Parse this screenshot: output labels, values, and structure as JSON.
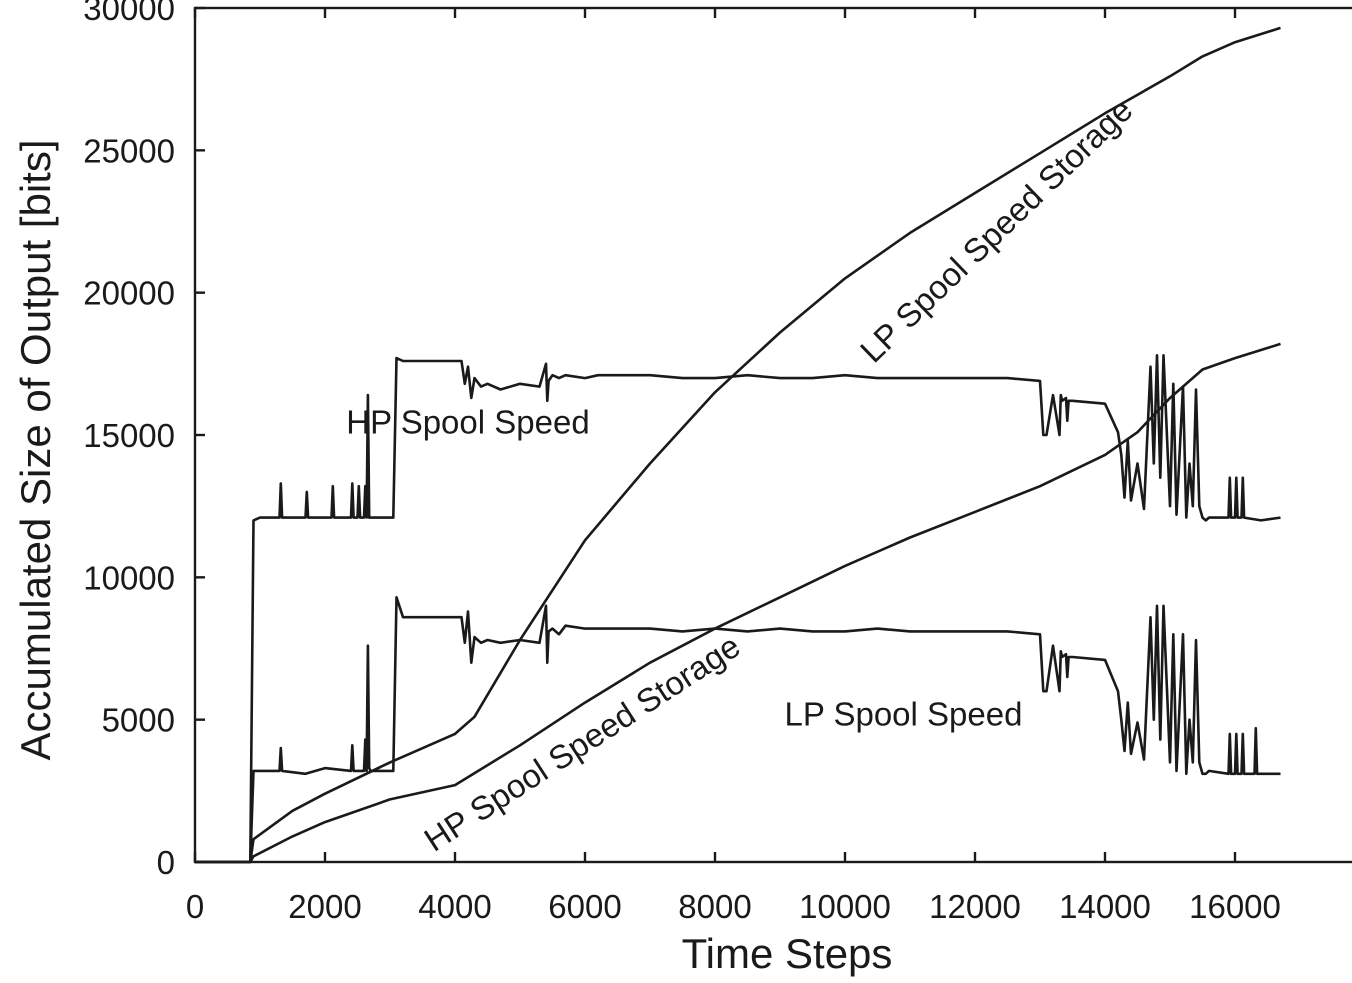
{
  "chart_data": {
    "type": "line",
    "title": "",
    "xlabel": "Time Steps",
    "ylabel": "Accumulated Size of Output [bits]",
    "xlim": [
      0,
      17800
    ],
    "ylim": [
      0,
      30000
    ],
    "xticks": [
      0,
      2000,
      4000,
      6000,
      8000,
      10000,
      12000,
      14000,
      16000
    ],
    "yticks": [
      0,
      5000,
      10000,
      15000,
      20000,
      25000,
      30000
    ],
    "xtick_labels": [
      "0",
      "2000",
      "4000",
      "6000",
      "8000",
      "10000",
      "12000",
      "14000",
      "16000"
    ],
    "ytick_labels": [
      "0",
      "5000",
      "10000",
      "15000",
      "20000",
      "25000",
      "30000"
    ],
    "grid": false,
    "legend": "none",
    "series": [
      {
        "name": "LP Spool Speed Storage",
        "x": [
          0,
          850,
          900,
          1500,
          2000,
          3000,
          4000,
          4300,
          5000,
          6000,
          7000,
          8000,
          9000,
          10000,
          11000,
          12000,
          13000,
          14000,
          15000,
          15500,
          16000,
          16700
        ],
        "y": [
          0,
          0,
          800,
          1800,
          2400,
          3500,
          4500,
          5100,
          7800,
          11300,
          14000,
          16500,
          18600,
          20500,
          22100,
          23500,
          24900,
          26300,
          27600,
          28300,
          28800,
          29300
        ]
      },
      {
        "name": "HP Spool Speed Storage",
        "x": [
          0,
          850,
          900,
          1500,
          2000,
          3000,
          4000,
          5000,
          6000,
          7000,
          8000,
          9000,
          10000,
          11000,
          12000,
          13000,
          14000,
          14500,
          15000,
          15500,
          16000,
          16700
        ],
        "y": [
          0,
          0,
          200,
          900,
          1400,
          2200,
          2700,
          4100,
          5600,
          7000,
          8200,
          9300,
          10400,
          11400,
          12300,
          13200,
          14300,
          15100,
          16300,
          17300,
          17700,
          18200
        ]
      },
      {
        "name": "HP Spool Speed",
        "x": [
          0,
          850,
          900,
          1000,
          1300,
          1320,
          1340,
          1700,
          1720,
          1740,
          2100,
          2120,
          2140,
          2400,
          2420,
          2440,
          2500,
          2520,
          2540,
          2600,
          2620,
          2640,
          2660,
          2680,
          2700,
          3050,
          3100,
          3200,
          4100,
          4150,
          4200,
          4250,
          4300,
          4400,
          4500,
          4700,
          5000,
          5300,
          5400,
          5420,
          5440,
          5500,
          5600,
          5700,
          6000,
          6200,
          6500,
          7000,
          7500,
          8000,
          8500,
          9000,
          9500,
          10000,
          10500,
          11000,
          11500,
          12000,
          12500,
          13000,
          13050,
          13100,
          13200,
          13300,
          13320,
          13340,
          13400,
          13420,
          13440,
          13500,
          14000,
          14200,
          14250,
          14300,
          14350,
          14400,
          14500,
          14600,
          14700,
          14750,
          14800,
          14850,
          14900,
          15000,
          15050,
          15100,
          15200,
          15250,
          15300,
          15350,
          15400,
          15450,
          15500,
          15550,
          15600,
          15900,
          15920,
          15940,
          16000,
          16020,
          16040,
          16100,
          16120,
          16140,
          16400,
          16700
        ],
        "y": [
          0,
          0,
          12000,
          12100,
          12100,
          13300,
          12100,
          12100,
          13000,
          12100,
          12100,
          13200,
          12100,
          12100,
          13300,
          12100,
          12100,
          13200,
          12100,
          12100,
          13200,
          12100,
          16400,
          12100,
          12100,
          12100,
          17700,
          17600,
          17600,
          16800,
          17400,
          16300,
          17000,
          16700,
          16800,
          16600,
          16800,
          16700,
          17500,
          16200,
          16900,
          17100,
          17000,
          17100,
          17000,
          17100,
          17100,
          17100,
          17000,
          17000,
          17100,
          17000,
          17000,
          17100,
          17000,
          17000,
          17000,
          17000,
          17000,
          16900,
          15000,
          15000,
          16400,
          15000,
          16400,
          16200,
          16300,
          15500,
          16200,
          16200,
          16100,
          15100,
          14300,
          12800,
          14800,
          12700,
          14000,
          12400,
          17400,
          14000,
          17800,
          13500,
          17800,
          12500,
          16800,
          12200,
          16700,
          12100,
          14000,
          12500,
          16600,
          12500,
          12100,
          12000,
          12100,
          12100,
          13500,
          12100,
          12100,
          13500,
          12100,
          12100,
          13500,
          12100,
          12000,
          12100
        ]
      },
      {
        "name": "LP Spool Speed",
        "x": [
          0,
          850,
          900,
          1000,
          1300,
          1320,
          1340,
          1700,
          2000,
          2400,
          2420,
          2440,
          2600,
          2620,
          2640,
          2660,
          2680,
          2700,
          3050,
          3100,
          3200,
          4100,
          4150,
          4200,
          4250,
          4300,
          4400,
          4500,
          4700,
          5000,
          5300,
          5400,
          5420,
          5440,
          5500,
          5600,
          5700,
          6000,
          6500,
          7000,
          7500,
          8000,
          8500,
          9000,
          9500,
          10000,
          10500,
          11000,
          11500,
          12000,
          12500,
          13000,
          13050,
          13100,
          13200,
          13300,
          13320,
          13340,
          13400,
          13420,
          13440,
          13500,
          14000,
          14200,
          14250,
          14300,
          14350,
          14400,
          14500,
          14600,
          14700,
          14750,
          14800,
          14850,
          14900,
          15000,
          15050,
          15100,
          15200,
          15250,
          15300,
          15350,
          15400,
          15450,
          15500,
          15550,
          15600,
          15900,
          15920,
          15940,
          16000,
          16020,
          16040,
          16100,
          16120,
          16140,
          16300,
          16320,
          16340,
          16700
        ],
        "y": [
          0,
          0,
          3200,
          3200,
          3200,
          4000,
          3200,
          3100,
          3300,
          3200,
          4100,
          3200,
          3200,
          4300,
          3200,
          7600,
          3300,
          3200,
          3200,
          9300,
          8600,
          8600,
          7700,
          8800,
          7000,
          7900,
          7700,
          7800,
          7700,
          7800,
          7700,
          9000,
          7000,
          8100,
          8200,
          8000,
          8300,
          8200,
          8200,
          8200,
          8100,
          8200,
          8100,
          8200,
          8100,
          8100,
          8200,
          8100,
          8100,
          8100,
          8100,
          8000,
          6000,
          6000,
          7600,
          6000,
          7400,
          7200,
          7300,
          6500,
          7200,
          7200,
          7100,
          6000,
          5000,
          3900,
          5600,
          3800,
          4900,
          3600,
          8600,
          5000,
          9000,
          4300,
          9000,
          3500,
          8000,
          3200,
          8000,
          3100,
          5000,
          3500,
          7800,
          3500,
          3100,
          3100,
          3200,
          3100,
          4500,
          3100,
          3100,
          4500,
          3100,
          3100,
          4500,
          3100,
          3100,
          4700,
          3100,
          3100
        ]
      }
    ],
    "annotations": [
      {
        "text": "LP Spool Speed Storage",
        "x": 12450,
        "y": 21900,
        "rotation": -44
      },
      {
        "text": "HP Spool Speed Storage",
        "x": 6050,
        "y": 3850,
        "rotation": -33
      },
      {
        "text": "HP Spool Speed",
        "x": 4200,
        "y": 15050
      },
      {
        "text": "LP Spool Speed",
        "x": 10900,
        "y": 4800
      }
    ]
  }
}
